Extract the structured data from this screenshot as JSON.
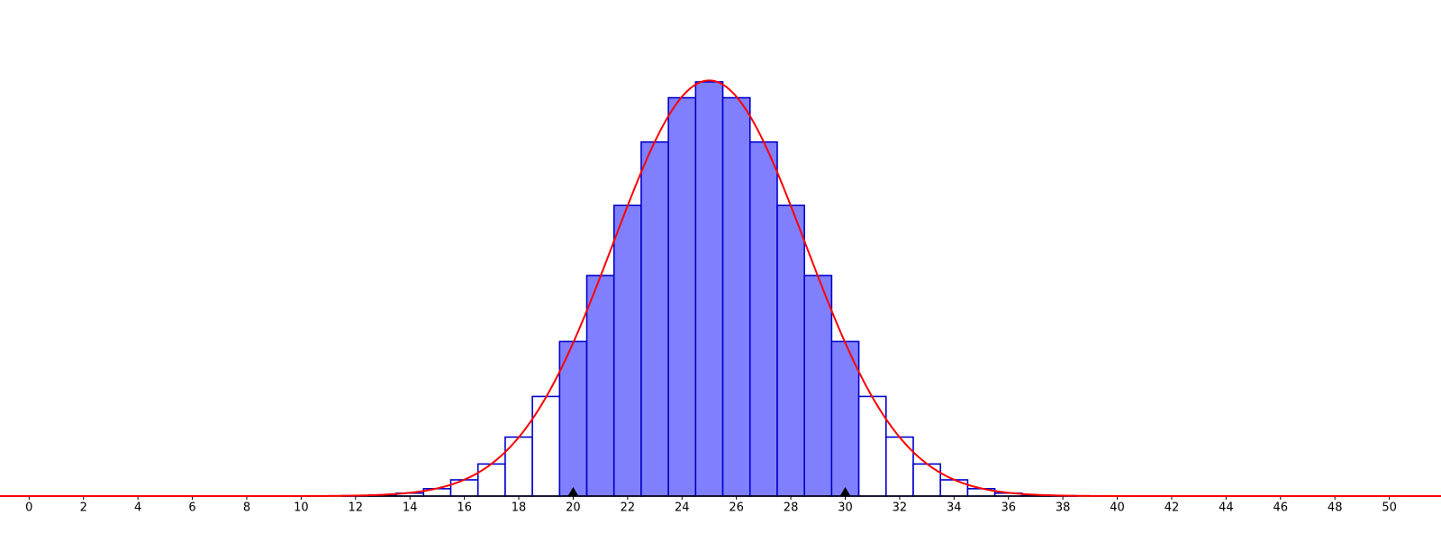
{
  "chart_data": {
    "type": "histogram",
    "bins": [
      11.5,
      12.5,
      13.5,
      14.5,
      15.5,
      16.5,
      17.5,
      18.5,
      19.5,
      20.5,
      21.5,
      22.5,
      23.5,
      24.5,
      25.5,
      26.5,
      27.5,
      28.5,
      29.5,
      30.5,
      31.5,
      32.5,
      33.5,
      34.5,
      35.5,
      36.5,
      37.5,
      38.5
    ],
    "values": [
      0.0001,
      0.0003,
      0.0008,
      0.002,
      0.0044,
      0.0087,
      0.016,
      0.027,
      0.0419,
      0.0598,
      0.0788,
      0.096,
      0.108,
      0.1123,
      0.108,
      0.096,
      0.0788,
      0.0598,
      0.0419,
      0.027,
      0.016,
      0.0087,
      0.0044,
      0.002,
      0.0008,
      0.0003,
      0.0001
    ],
    "color": "#8080ff",
    "edge_color": "#0000cc",
    "highlight": [
      20,
      30
    ],
    "curve": {
      "mean": 25,
      "sd": 3.54,
      "color": "#ff0000"
    },
    "xlim": [
      -1.07,
      51.9
    ],
    "ylim": [
      0,
      0.1345
    ],
    "xticks": [
      0,
      2,
      4,
      6,
      8,
      10,
      12,
      14,
      16,
      18,
      20,
      22,
      24,
      26,
      28,
      30,
      32,
      34,
      36,
      38,
      40,
      42,
      44,
      46,
      48,
      50
    ]
  }
}
